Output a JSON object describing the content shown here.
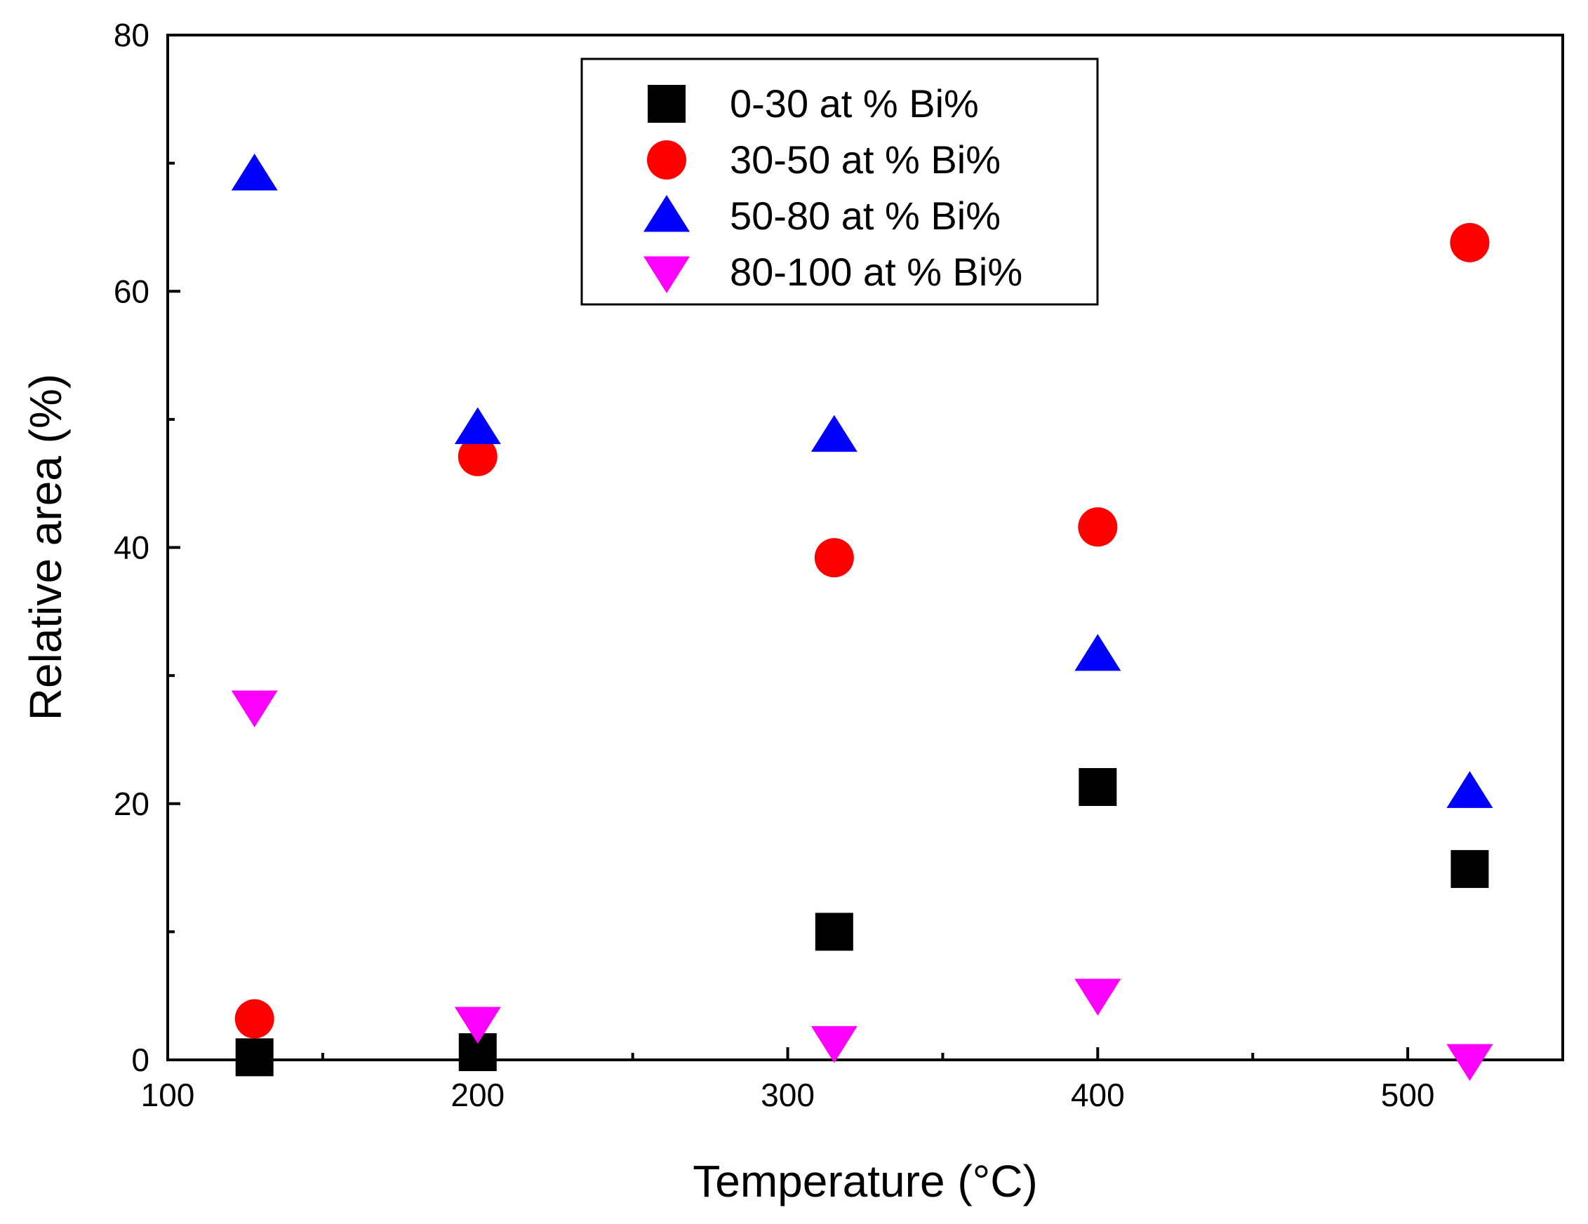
{
  "chart_data": {
    "type": "scatter",
    "title": "",
    "xlabel": "Temperature (°C)",
    "ylabel": "Relative area (%)",
    "xlim": [
      100,
      550
    ],
    "ylim": [
      0,
      80
    ],
    "x_ticks": [
      100,
      200,
      300,
      400,
      500
    ],
    "x_minor_ticks": [
      150,
      250,
      350,
      450
    ],
    "y_ticks": [
      0,
      20,
      40,
      60,
      80
    ],
    "y_minor_ticks": [
      10,
      30,
      50,
      70
    ],
    "legend_position": "top-center",
    "series": [
      {
        "name": "0-30 at % Bi%",
        "marker": "square",
        "color": "#000000",
        "points": [
          {
            "x": 128,
            "y": 0.2
          },
          {
            "x": 200,
            "y": 0.6
          },
          {
            "x": 315,
            "y": 10.0
          },
          {
            "x": 400,
            "y": 21.3
          },
          {
            "x": 520,
            "y": 14.9
          }
        ]
      },
      {
        "name": "30-50 at % Bi%",
        "marker": "circle",
        "color": "#ff0000",
        "points": [
          {
            "x": 128,
            "y": 3.2
          },
          {
            "x": 200,
            "y": 47.1
          },
          {
            "x": 315,
            "y": 39.2
          },
          {
            "x": 400,
            "y": 41.6
          },
          {
            "x": 520,
            "y": 63.8
          }
        ]
      },
      {
        "name": "50-80 at % Bi%",
        "marker": "triangle-up",
        "color": "#0000ff",
        "points": [
          {
            "x": 128,
            "y": 69.1
          },
          {
            "x": 200,
            "y": 49.3
          },
          {
            "x": 315,
            "y": 48.7
          },
          {
            "x": 400,
            "y": 31.6
          },
          {
            "x": 520,
            "y": 20.9
          }
        ]
      },
      {
        "name": "80-100 at % Bi%",
        "marker": "triangle-down",
        "color": "#ff00ff",
        "points": [
          {
            "x": 128,
            "y": 27.6
          },
          {
            "x": 200,
            "y": 2.9
          },
          {
            "x": 315,
            "y": 1.4
          },
          {
            "x": 400,
            "y": 5.1
          },
          {
            "x": 520,
            "y": 0.0
          }
        ]
      }
    ]
  }
}
